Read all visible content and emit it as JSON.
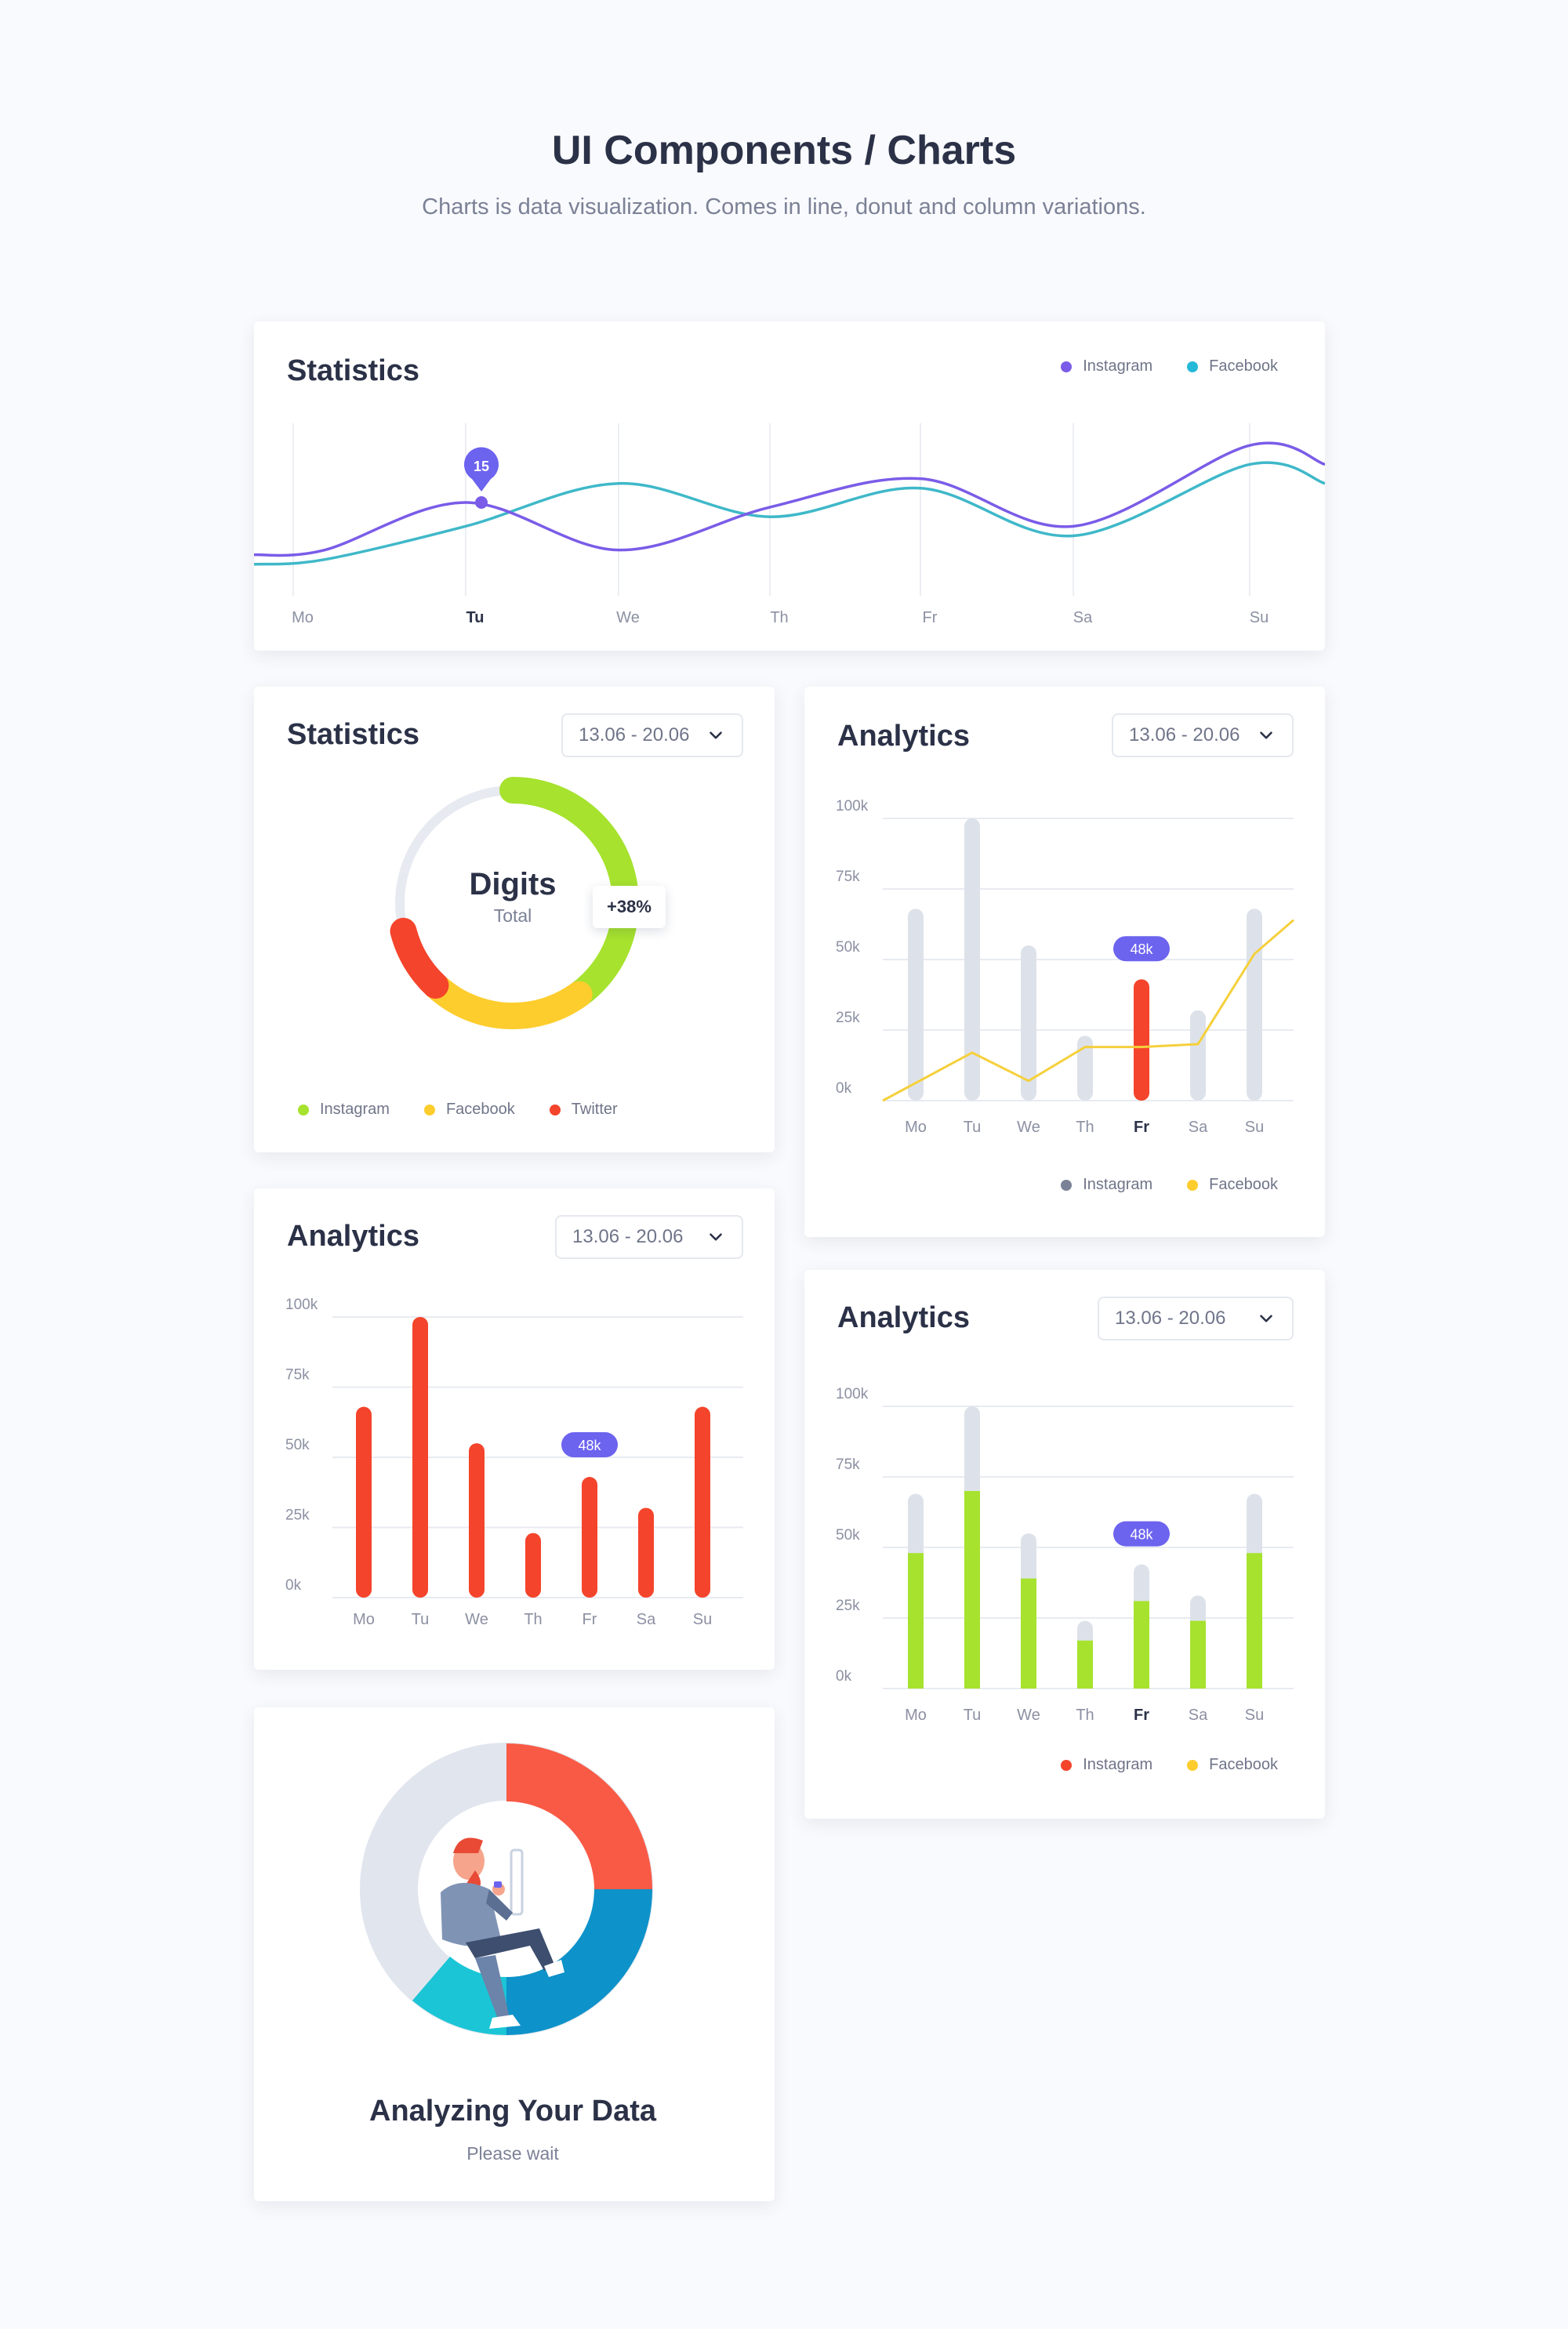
{
  "page": {
    "title": "UI Components / Charts",
    "subtitle": "Charts is data visualization. Comes in line, donut and column variations."
  },
  "colors": {
    "instagram_line": "#7a5ce8",
    "facebook_line": "#3fb8c9",
    "bar_gray": "#dde2ea",
    "bar_red": "#f4442b",
    "bar_green": "#a6e22e",
    "badge": "#6c63ef",
    "line_yellow": "#f5d03c",
    "donut_green": "#a6e22e",
    "donut_yellow": "#fdcd2e",
    "donut_red": "#f4442b",
    "donut_track": "#e7eaf0"
  },
  "line_card": {
    "title": "Statistics",
    "legend": [
      {
        "label": "Instagram",
        "color": "#7a5ce8"
      },
      {
        "label": "Facebook",
        "color": "#24b9d8"
      }
    ],
    "marker_value": "15",
    "active_day": "Tu",
    "chart_data": {
      "type": "line",
      "categories": [
        "Mo",
        "Tu",
        "We",
        "Th",
        "Fr",
        "Sa",
        "Su"
      ],
      "series": [
        {
          "name": "Instagram",
          "values": [
            5,
            15,
            5,
            14,
            20,
            10,
            27
          ]
        },
        {
          "name": "Facebook",
          "values": [
            3,
            10,
            19,
            12,
            18,
            8,
            23
          ]
        }
      ],
      "grid": true
    }
  },
  "donut_card": {
    "title": "Statistics",
    "range": "13.06 - 20.06",
    "center_label": "Digits",
    "center_sub": "Total",
    "badge": "+38%",
    "legend": [
      {
        "label": "Instagram",
        "color": "#a6e22e"
      },
      {
        "label": "Facebook",
        "color": "#fdcd2e"
      },
      {
        "label": "Twitter",
        "color": "#f4442b"
      }
    ],
    "chart_data": {
      "type": "pie",
      "categories": [
        "Instagram",
        "Facebook",
        "Twitter"
      ],
      "values": [
        40,
        22,
        9
      ]
    }
  },
  "analytics_gray": {
    "title": "Analytics",
    "range": "13.06 - 20.06",
    "badge": "48k",
    "active_day": "Fr",
    "legend": [
      {
        "label": "Instagram",
        "color": "#7b8196"
      },
      {
        "label": "Facebook",
        "color": "#fdcd2e"
      }
    ],
    "chart_data": {
      "type": "bar",
      "categories": [
        "Mo",
        "Tu",
        "We",
        "Th",
        "Fr",
        "Sa",
        "Su"
      ],
      "y_ticks": [
        "0k",
        "25k",
        "50k",
        "75k",
        "100k"
      ],
      "ylim": [
        0,
        100
      ],
      "series": [
        {
          "name": "Instagram",
          "values": [
            68,
            100,
            55,
            23,
            43,
            32,
            68
          ]
        },
        {
          "name": "Facebook",
          "values": [
            0,
            17,
            7,
            19,
            19,
            20,
            52
          ]
        }
      ],
      "highlight_index": 4
    }
  },
  "analytics_red": {
    "title": "Analytics",
    "range": "13.06 - 20.06",
    "badge": "48k",
    "chart_data": {
      "type": "bar",
      "categories": [
        "Mo",
        "Tu",
        "We",
        "Th",
        "Fr",
        "Sa",
        "Su"
      ],
      "y_ticks": [
        "0k",
        "25k",
        "50k",
        "75k",
        "100k"
      ],
      "ylim": [
        0,
        100
      ],
      "values": [
        68,
        100,
        55,
        23,
        43,
        32,
        68
      ],
      "highlight_index": 4
    }
  },
  "analytics_stacked": {
    "title": "Analytics",
    "range": "13.06 - 20.06",
    "badge": "48k",
    "active_day": "Fr",
    "legend": [
      {
        "label": "Instagram",
        "color": "#f4442b"
      },
      {
        "label": "Facebook",
        "color": "#fdcd2e"
      }
    ],
    "chart_data": {
      "type": "bar",
      "categories": [
        "Mo",
        "Tu",
        "We",
        "Th",
        "Fr",
        "Sa",
        "Su"
      ],
      "y_ticks": [
        "0k",
        "25k",
        "50k",
        "75k",
        "100k"
      ],
      "ylim": [
        0,
        100
      ],
      "series": [
        {
          "name": "Instagram",
          "values": [
            48,
            70,
            39,
            17,
            31,
            24,
            48
          ]
        },
        {
          "name": "Facebook",
          "values": [
            69,
            100,
            55,
            24,
            44,
            33,
            69
          ]
        }
      ],
      "highlight_index": 4
    }
  },
  "loading_card": {
    "title": "Analyzing Your Data",
    "subtitle": "Please wait"
  }
}
